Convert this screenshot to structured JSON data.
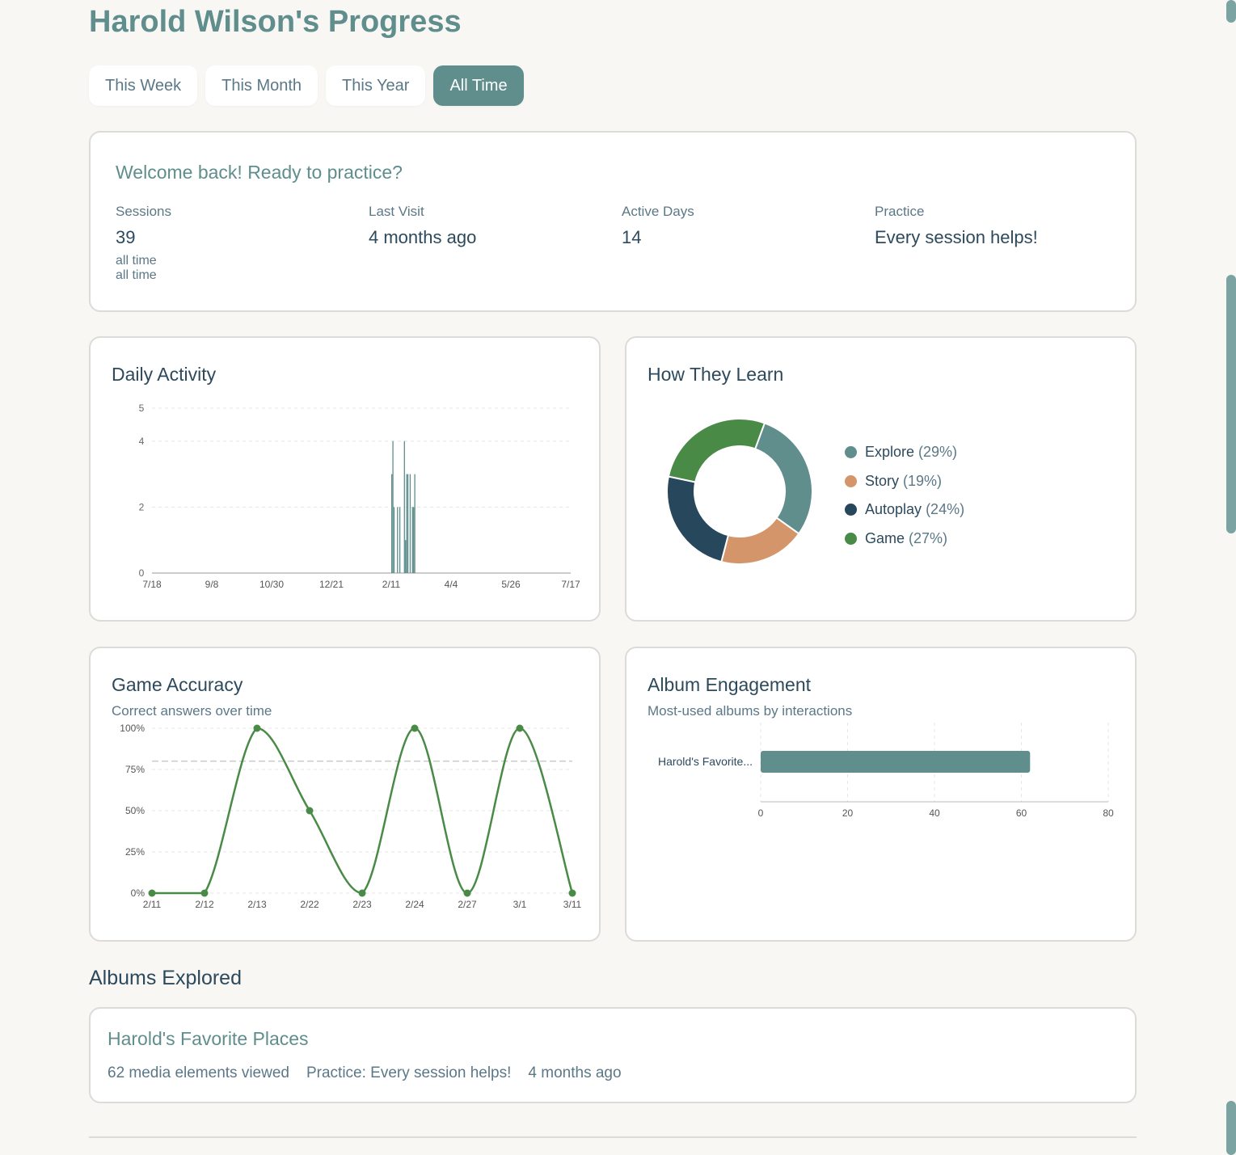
{
  "header": {
    "title": "Harold Wilson's Progress"
  },
  "tabs": [
    {
      "label": "This Week",
      "active": false
    },
    {
      "label": "This Month",
      "active": false
    },
    {
      "label": "This Year",
      "active": false
    },
    {
      "label": "All Time",
      "active": true
    }
  ],
  "welcome": {
    "title": "Welcome back! Ready to practice?",
    "stats": [
      {
        "label": "Sessions",
        "value": "39",
        "sub1": "all time",
        "sub2": "all time"
      },
      {
        "label": "Last Visit",
        "value": "4 months ago"
      },
      {
        "label": "Active Days",
        "value": "14"
      },
      {
        "label": "Practice",
        "value": "Every session helps!"
      }
    ]
  },
  "daily": {
    "title": "Daily Activity"
  },
  "learn": {
    "title": "How They Learn",
    "legend": [
      {
        "name": "Explore",
        "pct": "(29%)",
        "color": "#5f8e8d"
      },
      {
        "name": "Story",
        "pct": "(19%)",
        "color": "#d4956a"
      },
      {
        "name": "Autoplay",
        "pct": "(24%)",
        "color": "#27475c"
      },
      {
        "name": "Game",
        "pct": "(27%)",
        "color": "#4a8a47"
      }
    ]
  },
  "accuracy": {
    "title": "Game Accuracy",
    "subtitle": "Correct answers over time"
  },
  "album": {
    "title": "Album Engagement",
    "subtitle": "Most-used albums by interactions"
  },
  "albums_section": {
    "heading": "Albums Explored",
    "items": [
      {
        "name": "Harold's Favorite Places",
        "viewed": "62 media elements viewed",
        "practice": "Practice: Every session helps!",
        "when": "4 months ago"
      }
    ]
  },
  "colors": {
    "teal": "#5f8e8d",
    "orange": "#d4956a",
    "navy": "#27475c",
    "green": "#4a8a47"
  },
  "chart_data": [
    {
      "type": "bar",
      "title": "Daily Activity",
      "yticks": [
        0,
        2,
        4,
        5
      ],
      "ylim": [
        0,
        5
      ],
      "xtick_labels": [
        "7/18",
        "9/8",
        "10/30",
        "12/21",
        "2/11",
        "4/4",
        "5/26",
        "7/17"
      ],
      "grid": true,
      "values_note": "sessions per day",
      "bars": [
        {
          "x": "2/11",
          "value": 3
        },
        {
          "x": "2/12",
          "value": 4
        },
        {
          "x": "2/13",
          "value": 2
        },
        {
          "x": "2/16",
          "value": 2
        },
        {
          "x": "2/18",
          "value": 2
        },
        {
          "x": "2/22",
          "value": 4
        },
        {
          "x": "2/23",
          "value": 1
        },
        {
          "x": "2/24",
          "value": 3
        },
        {
          "x": "2/25",
          "value": 3
        },
        {
          "x": "2/27",
          "value": 3
        },
        {
          "x": "3/1",
          "value": 2
        },
        {
          "x": "3/2",
          "value": 2
        },
        {
          "x": "3/3",
          "value": 3
        }
      ]
    },
    {
      "type": "pie",
      "title": "How They Learn",
      "categories": [
        "Explore",
        "Story",
        "Autoplay",
        "Game"
      ],
      "values": [
        29,
        19,
        24,
        27
      ]
    },
    {
      "type": "line",
      "title": "Game Accuracy",
      "subtitle": "Correct answers over time",
      "x": [
        "2/11",
        "2/12",
        "2/13",
        "2/22",
        "2/23",
        "2/24",
        "2/27",
        "3/1",
        "3/11"
      ],
      "series": [
        {
          "values": [
            0,
            0,
            100,
            50,
            0,
            100,
            0,
            100,
            0
          ]
        }
      ],
      "reference_line": 80,
      "yticks": [
        "0%",
        "25%",
        "50%",
        "75%",
        "100%"
      ],
      "ylim": [
        0,
        100
      ],
      "grid": true
    },
    {
      "type": "bar",
      "orientation": "horizontal",
      "title": "Album Engagement",
      "subtitle": "Most-used albums by interactions",
      "categories": [
        "Harold's Favorite..."
      ],
      "values": [
        62
      ],
      "xlim": [
        0,
        80
      ],
      "xticks": [
        0,
        20,
        40,
        60,
        80
      ],
      "grid": true
    }
  ]
}
